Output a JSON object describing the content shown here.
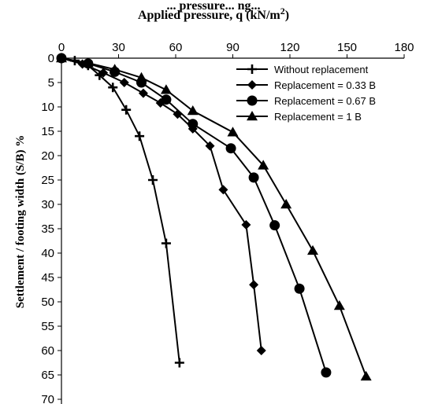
{
  "chart_data": {
    "type": "line",
    "title_top": "... pressure... ng...",
    "title": "Applied pressure, q (kN/m",
    "title_sup": "2",
    "title_end": ")",
    "ylabel": "Settlement / footing width (S/B) %",
    "xlim": [
      0,
      180
    ],
    "ylim": [
      0,
      70
    ],
    "x_ticks": [
      0,
      30,
      60,
      90,
      120,
      150,
      180
    ],
    "y_ticks": [
      0,
      5,
      10,
      15,
      20,
      25,
      30,
      35,
      40,
      45,
      50,
      55,
      60,
      65,
      70
    ],
    "x_axis_position": "top",
    "y_axis_inverted": true,
    "grid": false,
    "legend_position": "top-right",
    "series": [
      {
        "name": "Without replacement",
        "marker": "plus",
        "points": [
          [
            0,
            0
          ],
          [
            7,
            0.5
          ],
          [
            14,
            1.5
          ],
          [
            20,
            3.5
          ],
          [
            27,
            6
          ],
          [
            34,
            10.6
          ],
          [
            41,
            16
          ],
          [
            48,
            25
          ],
          [
            55,
            38
          ],
          [
            62,
            62.5
          ]
        ]
      },
      {
        "name": "Replacement = 0.33 B",
        "marker": "diamond",
        "points": [
          [
            0,
            0
          ],
          [
            11,
            1.2
          ],
          [
            22,
            3
          ],
          [
            33,
            5
          ],
          [
            43,
            7.2
          ],
          [
            52,
            9.2
          ],
          [
            61,
            11.5
          ],
          [
            69,
            14.5
          ],
          [
            78,
            18
          ],
          [
            85,
            27
          ],
          [
            97,
            34.2
          ],
          [
            101,
            46.5
          ],
          [
            105,
            60
          ]
        ]
      },
      {
        "name": "Replacement = 0.67 B",
        "marker": "circle",
        "points": [
          [
            0,
            0
          ],
          [
            14,
            1.1
          ],
          [
            28,
            2.8
          ],
          [
            42,
            5
          ],
          [
            55,
            8.5
          ],
          [
            69,
            13.5
          ],
          [
            89,
            18.5
          ],
          [
            101,
            24.5
          ],
          [
            112,
            34.3
          ],
          [
            125,
            47.3
          ],
          [
            139,
            64.5
          ]
        ]
      },
      {
        "name": "Replacement = 1 B",
        "marker": "triangle",
        "points": [
          [
            0,
            0
          ],
          [
            14,
            1
          ],
          [
            28,
            2.3
          ],
          [
            42,
            4
          ],
          [
            55,
            6.5
          ],
          [
            69,
            10.8
          ],
          [
            90,
            15.2
          ],
          [
            106,
            22
          ],
          [
            118,
            30
          ],
          [
            132,
            39.5
          ],
          [
            146,
            50.8
          ],
          [
            160,
            65.3
          ]
        ]
      }
    ]
  }
}
